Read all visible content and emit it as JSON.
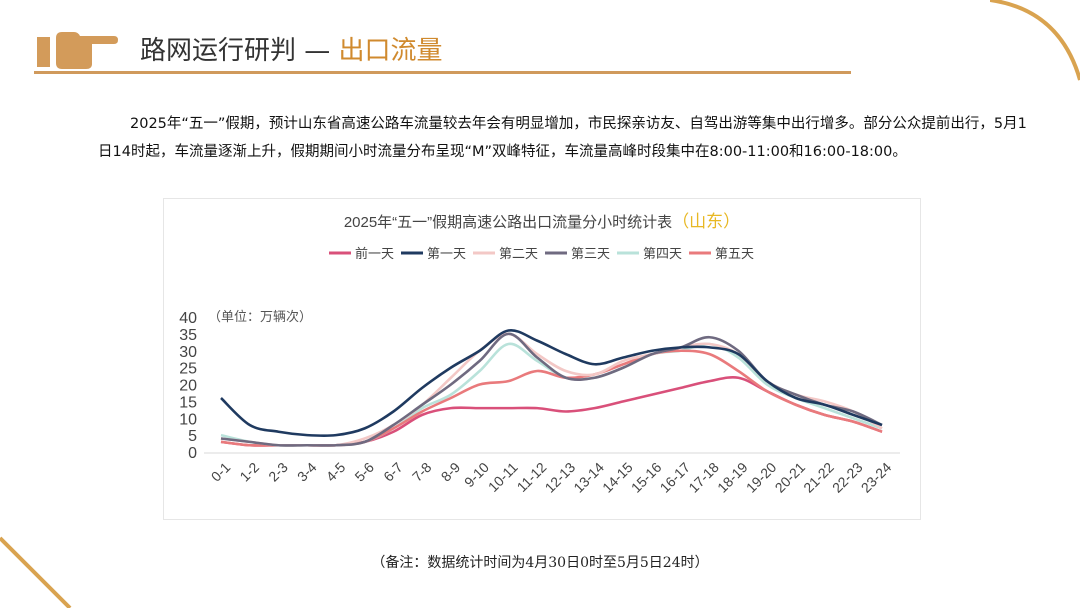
{
  "header": {
    "title_main": "路网运行研判 —",
    "title_accent": "出口流量",
    "accent_color": "#d08a2e",
    "icon": "pointing-hand-icon"
  },
  "paragraph": "2025年“五一”假期，预计山东省高速公路车流量较去年会有明显增加，市民探亲访友、自驾出游等集中出行增多。部分公众提前出行，5月1日14时起，车流量逐渐上升，假期期间小时流量分布呈现“M”双峰特征，车流量高峰时段集中在8:00-11:00和16:00-18:00。",
  "note": "（备注：数据统计时间为4月30日0时至5月5日24时）",
  "chart_data": {
    "type": "line",
    "title": "2025年“五一”假期高速公路出口流量分小时统计表",
    "title_accent": "（山东）",
    "unit_label": "（单位：万辆次）",
    "legend_position": "top",
    "grid": false,
    "ylim": [
      0,
      40
    ],
    "yticks": [
      0,
      5,
      10,
      15,
      20,
      25,
      30,
      35,
      40
    ],
    "categories": [
      "0-1",
      "1-2",
      "2-3",
      "3-4",
      "4-5",
      "5-6",
      "6-7",
      "7-8",
      "8-9",
      "9-10",
      "10-11",
      "11-12",
      "12-13",
      "13-14",
      "14-15",
      "15-16",
      "16-17",
      "17-18",
      "18-19",
      "19-20",
      "20-21",
      "21-22",
      "22-23",
      "23-24"
    ],
    "series": [
      {
        "name": "前一天",
        "color": "#d9507a",
        "values": [
          3,
          2,
          2,
          2,
          2,
          3,
          6,
          11,
          13,
          13,
          13,
          13,
          12,
          13,
          15,
          17,
          19,
          21,
          22,
          18,
          14,
          11,
          9,
          6
        ]
      },
      {
        "name": "第一天",
        "color": "#1f3a60",
        "values": [
          16,
          8,
          6,
          5,
          5,
          7,
          12,
          19,
          25,
          30,
          36,
          33,
          29,
          26,
          28,
          30,
          31,
          31,
          29,
          21,
          16,
          14,
          11,
          8
        ]
      },
      {
        "name": "第二天",
        "color": "#f3c8c6",
        "values": [
          4,
          3,
          2,
          2,
          2,
          4,
          8,
          14,
          22,
          30,
          35,
          29,
          24,
          23,
          27,
          29,
          31,
          32,
          29,
          21,
          17,
          15,
          12,
          7
        ]
      },
      {
        "name": "第三天",
        "color": "#6f6a80",
        "values": [
          4,
          3,
          2,
          2,
          2,
          3,
          8,
          14,
          20,
          27,
          35,
          28,
          22,
          22,
          25,
          29,
          31,
          34,
          30,
          21,
          17,
          14,
          12,
          8
        ]
      },
      {
        "name": "第四天",
        "color": "#b9e2da",
        "values": [
          5,
          3,
          2,
          2,
          2,
          3,
          7,
          13,
          17,
          24,
          32,
          27,
          22,
          22,
          25,
          29,
          30,
          32,
          28,
          20,
          16,
          13,
          10,
          7
        ]
      },
      {
        "name": "第五天",
        "color": "#e97a7c",
        "values": [
          3,
          2,
          2,
          2,
          2,
          3,
          7,
          12,
          16,
          20,
          21,
          24,
          22,
          23,
          26,
          29,
          30,
          29,
          24,
          18,
          14,
          11,
          9,
          6
        ]
      }
    ]
  }
}
